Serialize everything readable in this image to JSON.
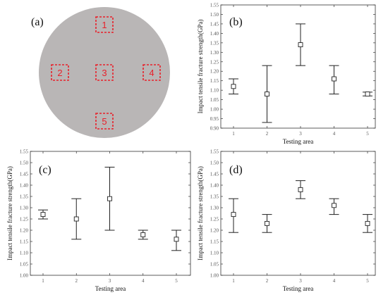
{
  "colors": {
    "wafer": "#b9b6b6",
    "region": "#e8202a",
    "axis": "#333333"
  },
  "panel_a": {
    "label": "(a)",
    "regions": [
      "1",
      "2",
      "3",
      "4",
      "5"
    ]
  },
  "chart_data": [
    {
      "id": "b",
      "label": "(b)",
      "type": "errorbar",
      "xlabel": "Testing area",
      "ylabel": "Impact tensile fracture strength(GPa)",
      "categories": [
        "1",
        "2",
        "3",
        "4",
        "5"
      ],
      "ylim": [
        0.9,
        1.55
      ],
      "yticks": [
        "0.90",
        "0.95",
        "1.00",
        "1.05",
        "1.10",
        "1.15",
        "1.20",
        "1.25",
        "1.30",
        "1.35",
        "1.40",
        "1.45",
        "1.50",
        "1.55"
      ],
      "ytick_values": [
        0.9,
        0.95,
        1.0,
        1.05,
        1.1,
        1.15,
        1.2,
        1.25,
        1.3,
        1.35,
        1.4,
        1.45,
        1.5,
        1.55
      ],
      "values": [
        1.12,
        1.08,
        1.34,
        1.16,
        1.08
      ],
      "lower": [
        1.08,
        0.93,
        1.23,
        1.08,
        1.07
      ],
      "upper": [
        1.16,
        1.23,
        1.45,
        1.23,
        1.09
      ]
    },
    {
      "id": "c",
      "label": "(c)",
      "type": "errorbar",
      "xlabel": "Testing area",
      "ylabel": "Impact tensile fracture strength(GPa)",
      "categories": [
        "1",
        "2",
        "3",
        "4",
        "5"
      ],
      "ylim": [
        1.0,
        1.55
      ],
      "yticks": [
        "1.00",
        "1.05",
        "1.10",
        "1.15",
        "1.20",
        "1.25",
        "1.30",
        "1.35",
        "1.40",
        "1.45",
        "1.50",
        "1.55"
      ],
      "ytick_values": [
        1.0,
        1.05,
        1.1,
        1.15,
        1.2,
        1.25,
        1.3,
        1.35,
        1.4,
        1.45,
        1.5,
        1.55
      ],
      "values": [
        1.27,
        1.25,
        1.34,
        1.18,
        1.16
      ],
      "lower": [
        1.25,
        1.16,
        1.2,
        1.16,
        1.11
      ],
      "upper": [
        1.29,
        1.34,
        1.48,
        1.2,
        1.2
      ]
    },
    {
      "id": "d",
      "label": "(d)",
      "type": "errorbar",
      "xlabel": "Testing area",
      "ylabel": "Impact tensile fracture strength(GPa)",
      "categories": [
        "1",
        "2",
        "3",
        "4",
        "5"
      ],
      "ylim": [
        1.0,
        1.55
      ],
      "yticks": [
        "1.00",
        "1.05",
        "1.10",
        "1.15",
        "1.20",
        "1.25",
        "1.30",
        "1.35",
        "1.40",
        "1.45",
        "1.50",
        "1.55"
      ],
      "ytick_values": [
        1.0,
        1.05,
        1.1,
        1.15,
        1.2,
        1.25,
        1.3,
        1.35,
        1.4,
        1.45,
        1.5,
        1.55
      ],
      "values": [
        1.27,
        1.23,
        1.38,
        1.31,
        1.23
      ],
      "lower": [
        1.19,
        1.19,
        1.34,
        1.27,
        1.19
      ],
      "upper": [
        1.34,
        1.27,
        1.42,
        1.34,
        1.27
      ]
    }
  ]
}
